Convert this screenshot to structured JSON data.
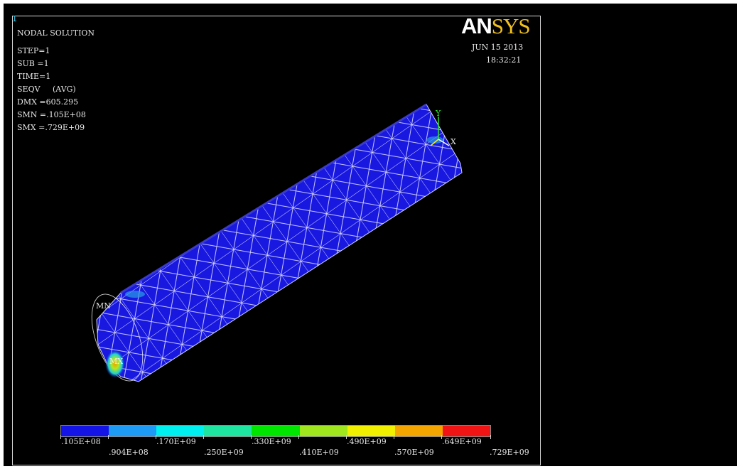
{
  "window_number": "1",
  "logo": {
    "part1": "AN",
    "part2": "SYS"
  },
  "plot_info": {
    "title": "NODAL SOLUTION",
    "lines": [
      "STEP=1",
      "SUB =1",
      "TIME=1",
      "SEQV     (AVG)",
      "DMX =605.295",
      "SMN =.105E+08",
      "SMX =.729E+09"
    ]
  },
  "date": "JUN 15 2013",
  "time": "18:32:21",
  "markers": {
    "min": "MN",
    "max": "MX"
  },
  "axes": {
    "y": "Y",
    "x": "X"
  },
  "legend": {
    "colors": [
      "#1414e6",
      "#1e9bf5",
      "#00f0f0",
      "#1ee6a0",
      "#00e600",
      "#a0e61e",
      "#f0f000",
      "#f5a500",
      "#f01414"
    ],
    "labels_top": [
      ".105E+08",
      ".170E+09",
      ".330E+09",
      ".490E+09",
      ".649E+09"
    ],
    "labels_bottom": [
      ".904E+08",
      ".250E+09",
      ".410E+09",
      ".570E+09",
      ".729E+09"
    ]
  }
}
